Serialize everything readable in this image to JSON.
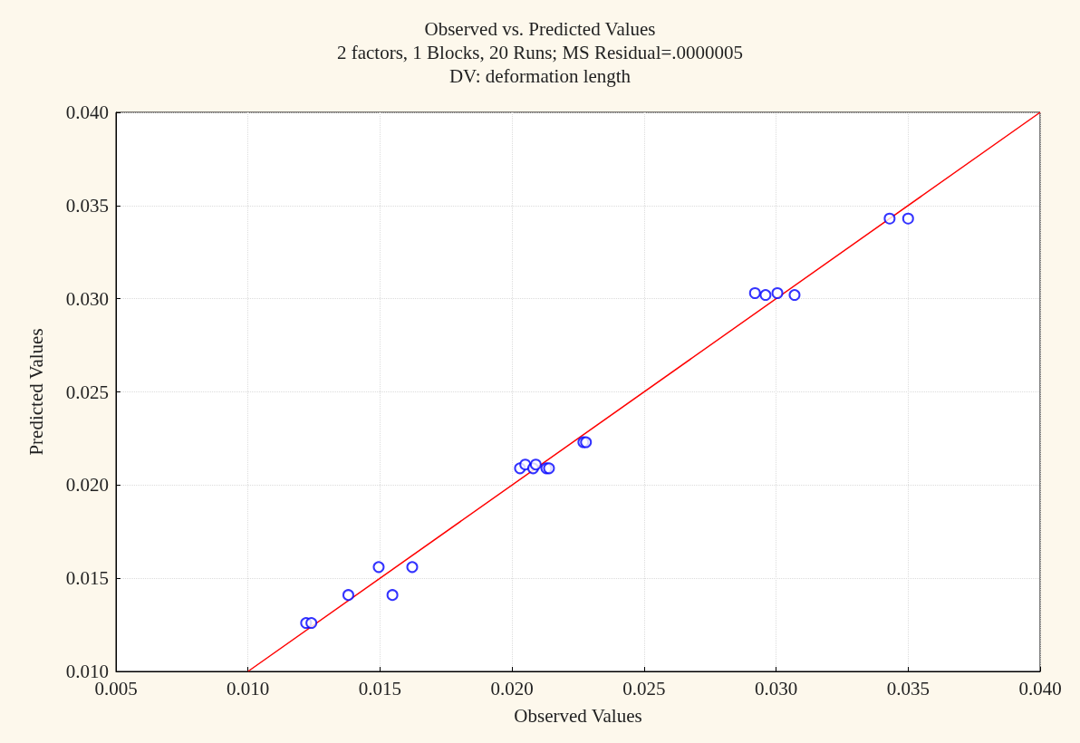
{
  "chart_data": {
    "type": "scatter",
    "title": "Observed vs. Predicted Values",
    "subtitle": "2 factors, 1 Blocks, 20 Runs; MS Residual=.0000005\nDV: deformation length",
    "xlabel": "Observed Values",
    "ylabel": "Predicted Values",
    "xlim": [
      0.005,
      0.04
    ],
    "xticks": [
      {
        "value": 0.005,
        "label": "0.005"
      },
      {
        "value": 0.01,
        "label": "0.010"
      },
      {
        "value": 0.015,
        "label": "0.015"
      },
      {
        "value": 0.02,
        "label": "0.020"
      },
      {
        "value": 0.025,
        "label": "0.025"
      },
      {
        "value": 0.03,
        "label": "0.030"
      },
      {
        "value": 0.035,
        "label": "0.035"
      },
      {
        "value": 0.04,
        "label": "0.040"
      }
    ],
    "ylim": [
      0.01,
      0.04
    ],
    "yticks": [
      {
        "value": 0.01,
        "label": "0.010"
      },
      {
        "value": 0.015,
        "label": "0.015"
      },
      {
        "value": 0.02,
        "label": "0.020"
      },
      {
        "value": 0.025,
        "label": "0.025"
      },
      {
        "value": 0.03,
        "label": "0.030"
      },
      {
        "value": 0.035,
        "label": "0.035"
      },
      {
        "value": 0.04,
        "label": "0.040"
      }
    ],
    "grid": true,
    "series": [
      {
        "color": "#0000ff",
        "marker": "circle",
        "x": [
          0.0122,
          0.0124,
          0.0138,
          0.01495,
          0.01547,
          0.01622,
          0.0203,
          0.0205,
          0.0208,
          0.0209,
          0.0213,
          0.0214,
          0.0227,
          0.0228,
          0.0292,
          0.0296,
          0.03005,
          0.0307,
          0.0343,
          0.035
        ],
        "values": [
          0.0126,
          0.0126,
          0.0141,
          0.0156,
          0.0141,
          0.0156,
          0.0209,
          0.0211,
          0.0209,
          0.0211,
          0.0209,
          0.0209,
          0.0223,
          0.0223,
          0.0303,
          0.0302,
          0.0303,
          0.0302,
          0.0343,
          0.0343
        ]
      },
      {
        "type": "line",
        "color": "#ff0000",
        "marker": "none",
        "line_style": "solid",
        "x": [
          0.01,
          0.04
        ],
        "values": [
          0.01,
          0.04
        ]
      }
    ]
  }
}
